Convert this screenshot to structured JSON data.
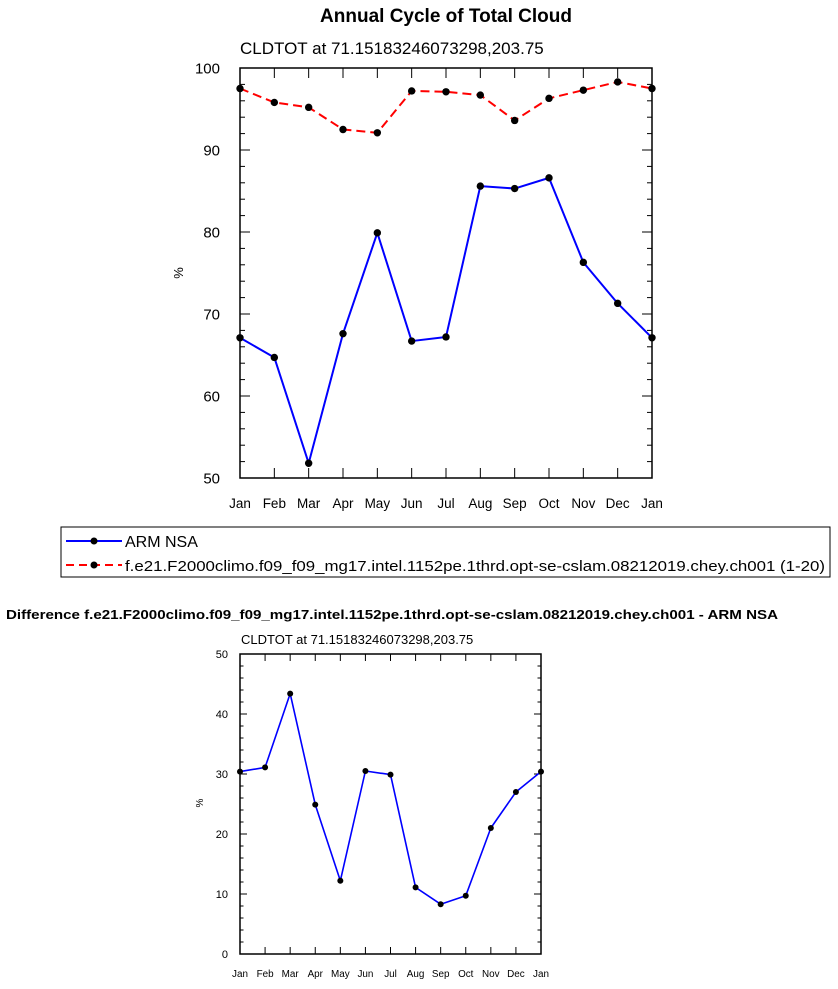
{
  "colors": {
    "obs": "#0000ff",
    "model": "#ff0000",
    "marker": "#000000",
    "axis": "#000000"
  },
  "chart_data": [
    {
      "type": "line",
      "title": "Annual Cycle of Total Cloud",
      "subtitle": "CLDTOT at 71.15183246073298,203.75",
      "xlabel": "",
      "ylabel": "%",
      "ylim": [
        50,
        100
      ],
      "yticks": [
        50,
        60,
        70,
        80,
        90,
        100
      ],
      "categories": [
        "Jan",
        "Feb",
        "Mar",
        "Apr",
        "May",
        "Jun",
        "Jul",
        "Aug",
        "Sep",
        "Oct",
        "Nov",
        "Dec",
        "Jan"
      ],
      "grid": false,
      "legend_placement": "bottom",
      "series": [
        {
          "name": "ARM NSA",
          "style": "solid",
          "color": "#0000ff",
          "values": [
            67.1,
            64.7,
            51.8,
            67.6,
            79.9,
            66.7,
            67.2,
            85.6,
            85.3,
            86.6,
            76.3,
            71.3,
            67.1
          ]
        },
        {
          "name": "f.e21.F2000climo.f09_f09_mg17.intel.1152pe.1thrd.opt-se-cslam.08212019.chey.ch001 (1-20)",
          "style": "dashed",
          "color": "#ff0000",
          "values": [
            97.5,
            95.8,
            95.2,
            92.5,
            92.1,
            97.2,
            97.1,
            96.7,
            93.6,
            96.3,
            97.3,
            98.3,
            97.5
          ]
        }
      ]
    },
    {
      "type": "line",
      "title": "Difference f.e21.F2000climo.f09_f09_mg17.intel.1152pe.1thrd.opt-se-cslam.08212019.chey.ch001 - ARM NSA",
      "subtitle": "CLDTOT at 71.15183246073298,203.75",
      "xlabel": "",
      "ylabel": "%",
      "ylim": [
        0,
        50
      ],
      "yticks": [
        0,
        10,
        20,
        30,
        40,
        50
      ],
      "categories": [
        "Jan",
        "Feb",
        "Mar",
        "Apr",
        "May",
        "Jun",
        "Jul",
        "Aug",
        "Sep",
        "Oct",
        "Nov",
        "Dec",
        "Jan"
      ],
      "grid": false,
      "series": [
        {
          "style": "solid",
          "color": "#0000ff",
          "values": [
            30.4,
            31.1,
            43.4,
            24.9,
            12.2,
            30.5,
            29.9,
            11.1,
            8.3,
            9.7,
            21.0,
            27.0,
            30.4
          ]
        }
      ]
    }
  ]
}
